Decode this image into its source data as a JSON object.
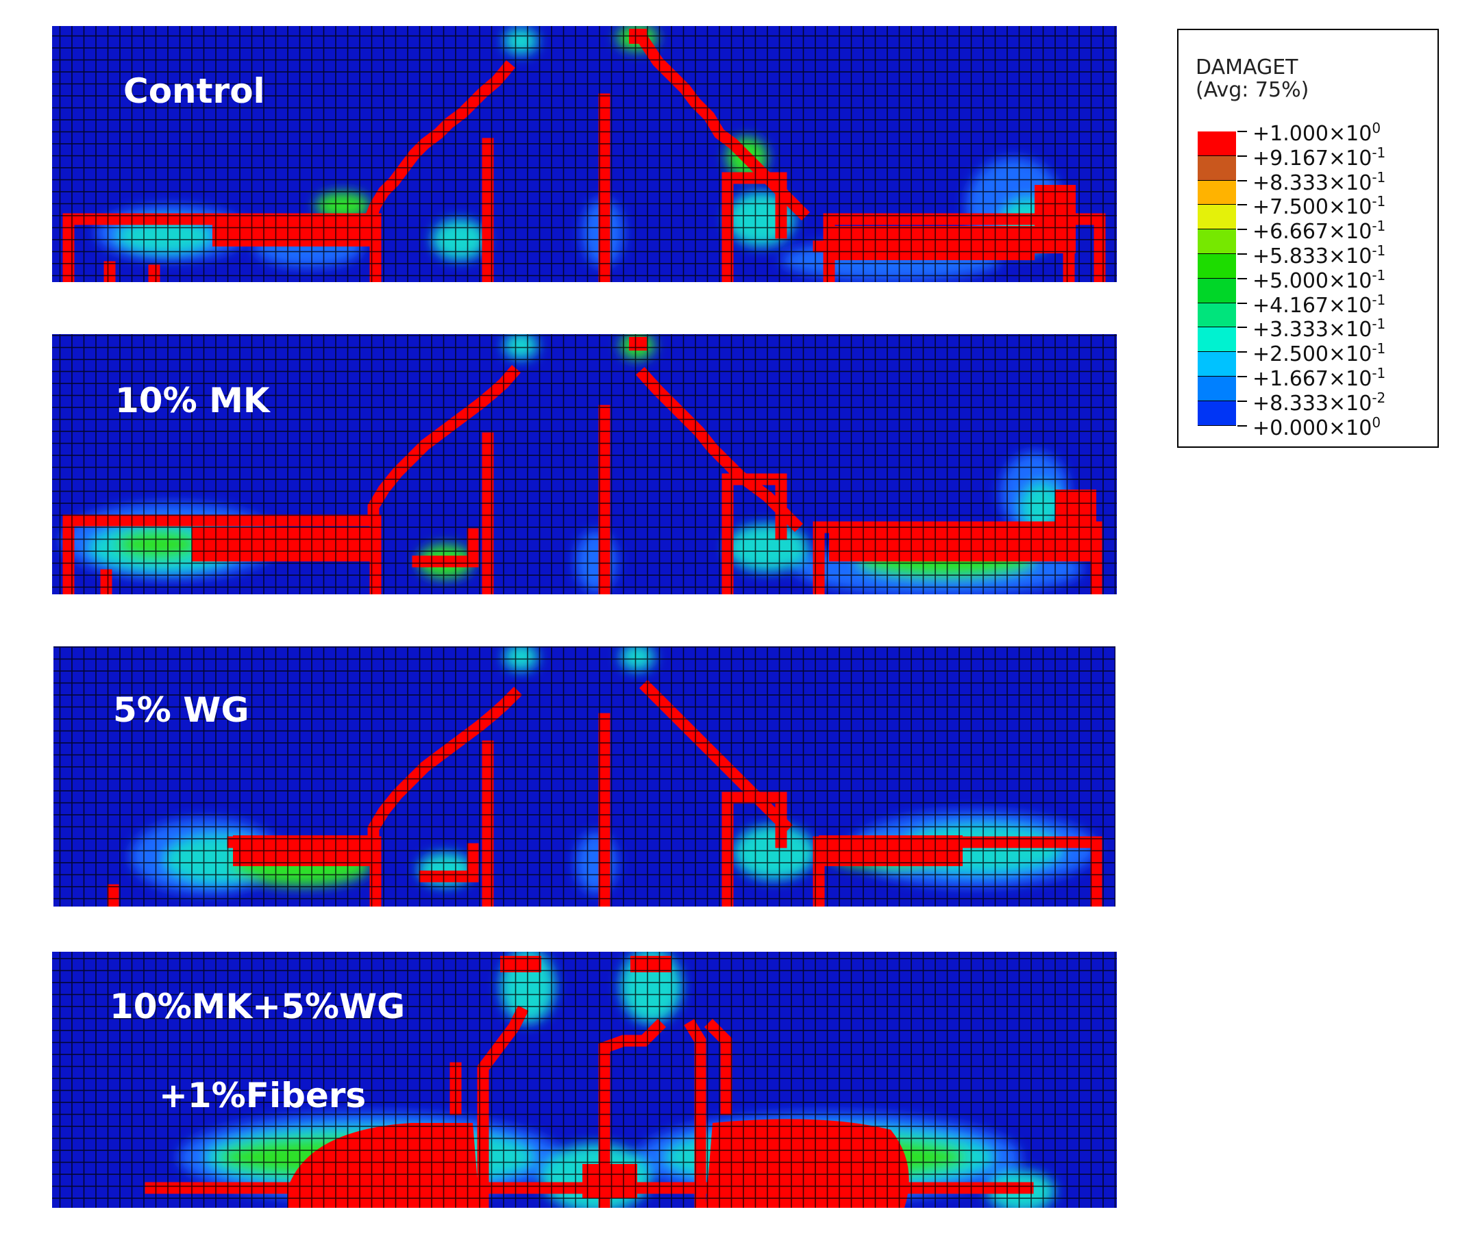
{
  "legend": {
    "variable": "DAMAGET",
    "averaging": "(Avg: 75%)",
    "levels": [
      {
        "mantissa": "+1.000×10",
        "exponent": "0",
        "color": "#ff0000"
      },
      {
        "mantissa": "+9.167×10",
        "exponent": "-1",
        "color": "#c9571d"
      },
      {
        "mantissa": "+8.333×10",
        "exponent": "-1",
        "color": "#ffb300"
      },
      {
        "mantissa": "+7.500×10",
        "exponent": "-1",
        "color": "#e4f10a"
      },
      {
        "mantissa": "+6.667×10",
        "exponent": "-1",
        "color": "#76e800"
      },
      {
        "mantissa": "+5.833×10",
        "exponent": "-1",
        "color": "#1ddc00"
      },
      {
        "mantissa": "+5.000×10",
        "exponent": "-1",
        "color": "#00d628"
      },
      {
        "mantissa": "+4.167×10",
        "exponent": "-1",
        "color": "#00e47c"
      },
      {
        "mantissa": "+3.333×10",
        "exponent": "-1",
        "color": "#00f2d0"
      },
      {
        "mantissa": "+2.500×10",
        "exponent": "-1",
        "color": "#00c2ff"
      },
      {
        "mantissa": "+1.667×10",
        "exponent": "-1",
        "color": "#0080ff"
      },
      {
        "mantissa": "+8.333×10",
        "exponent": "-2",
        "color": "#0035f5"
      },
      {
        "mantissa": "+0.000×10",
        "exponent": "0",
        "color": "#0a0fc8"
      }
    ]
  },
  "panels": [
    {
      "label_lines": [
        "Control"
      ]
    },
    {
      "label_lines": [
        "10% MK"
      ]
    },
    {
      "label_lines": [
        "5% WG"
      ]
    },
    {
      "label_lines": [
        "10%MK+5%WG",
        "+1%Fibers"
      ]
    }
  ],
  "colors": {
    "background_mesh": "#0a14c8",
    "mesh_lines": "#000000",
    "crack": "#ff0000",
    "halo_outer": "#1f6cff",
    "halo_mid": "#18d6d0",
    "halo_inner": "#2ee02a"
  }
}
